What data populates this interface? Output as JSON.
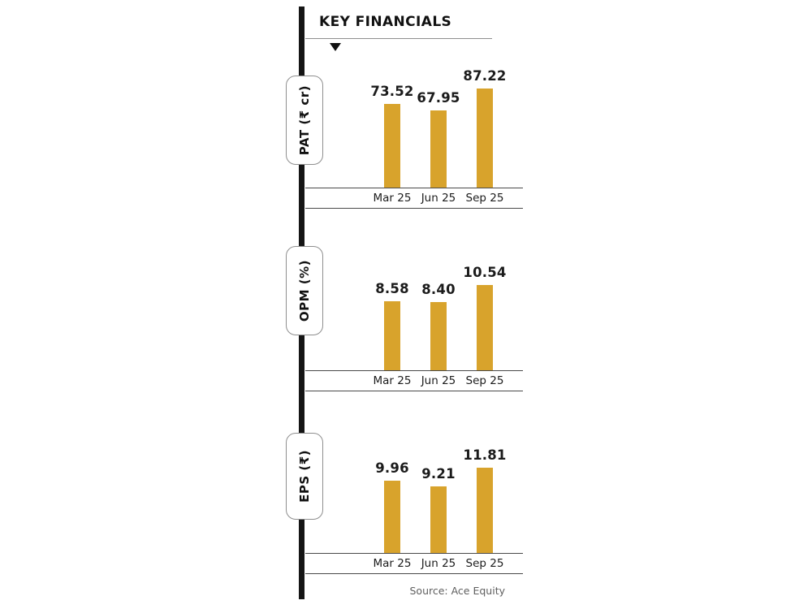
{
  "title": "KEY FINANCIALS",
  "source": "Source: Ace Equity",
  "colors": {
    "bar": "#D8A32C",
    "text_dark": "#1b1b1b"
  },
  "chart_data": [
    {
      "type": "bar",
      "name": "PAT",
      "unit_label": "PAT (₹ cr)",
      "categories": [
        "Mar 25",
        "Jun 25",
        "Sep 25"
      ],
      "values": [
        73.52,
        67.95,
        87.22
      ],
      "value_labels": [
        "73.52",
        "67.95",
        "87.22"
      ],
      "ylim": [
        0,
        87.22
      ],
      "grid": false,
      "legend": "none"
    },
    {
      "type": "bar",
      "name": "OPM",
      "unit_label": "OPM (%)",
      "categories": [
        "Mar 25",
        "Jun 25",
        "Sep 25"
      ],
      "values": [
        8.58,
        8.4,
        10.54
      ],
      "value_labels": [
        "8.58",
        "8.40",
        "10.54"
      ],
      "ylim": [
        0,
        10.54
      ],
      "grid": false,
      "legend": "none"
    },
    {
      "type": "bar",
      "name": "EPS",
      "unit_label": "EPS (₹)",
      "categories": [
        "Mar 25",
        "Jun 25",
        "Sep 25"
      ],
      "values": [
        9.96,
        9.21,
        11.81
      ],
      "value_labels": [
        "9.96",
        "9.21",
        "11.81"
      ],
      "ylim": [
        0,
        11.81
      ],
      "grid": false,
      "legend": "none"
    }
  ]
}
